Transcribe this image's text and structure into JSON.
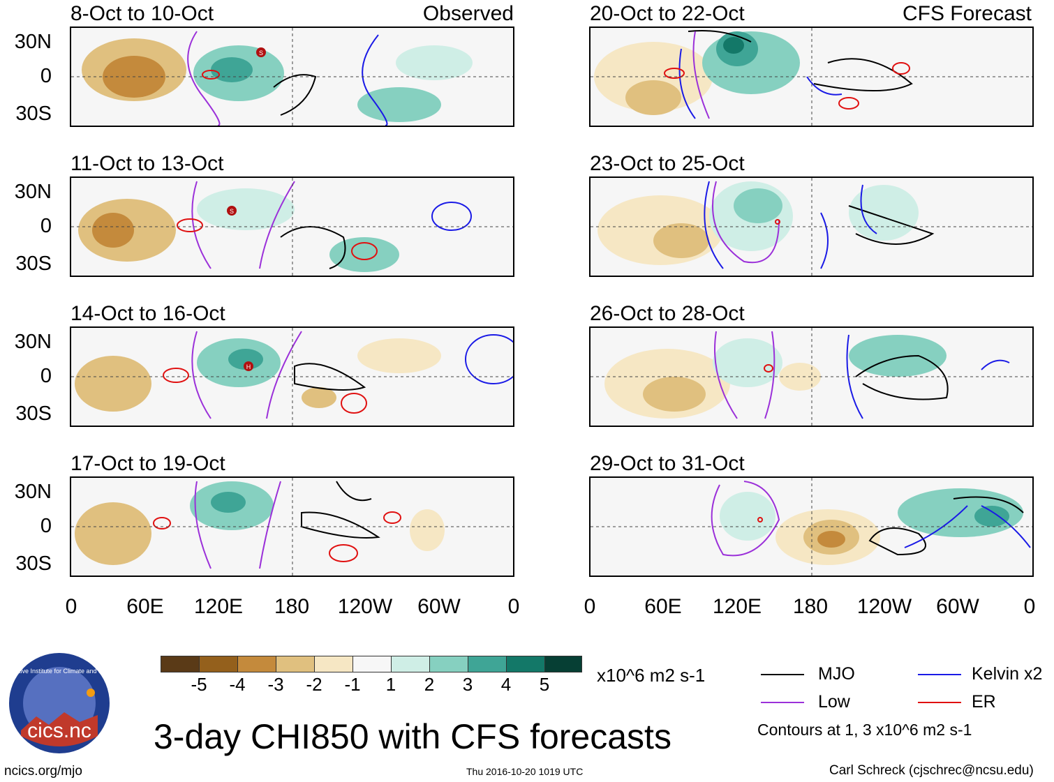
{
  "labels": {
    "observed": "Observed",
    "forecast": "CFS Forecast"
  },
  "left_panels": [
    {
      "date": "8-Oct to 10-Oct"
    },
    {
      "date": "11-Oct to 13-Oct"
    },
    {
      "date": "14-Oct to 16-Oct"
    },
    {
      "date": "17-Oct to 19-Oct"
    }
  ],
  "right_panels": [
    {
      "date": "20-Oct to 22-Oct"
    },
    {
      "date": "23-Oct to 25-Oct"
    },
    {
      "date": "26-Oct to 28-Oct"
    },
    {
      "date": "29-Oct to 31-Oct"
    }
  ],
  "lat_labels": [
    "30N",
    "0",
    "30S"
  ],
  "lon_labels": [
    "0",
    "60E",
    "120E",
    "180",
    "120W",
    "60W",
    "0"
  ],
  "storm_markers": [
    "S",
    "S",
    "H"
  ],
  "colorbar": {
    "colors": [
      "#5a3a17",
      "#94601c",
      "#c48a3c",
      "#e0c07f",
      "#f6e7c4",
      "#f7f7f7",
      "#cfeee6",
      "#86d0c0",
      "#3fa596",
      "#137868",
      "#063f34"
    ],
    "ticks": [
      "-5",
      "-4",
      "-3",
      "-2",
      "-1",
      "1",
      "2",
      "3",
      "4",
      "5"
    ],
    "units": "x10^6 m2 s-1"
  },
  "legend": {
    "mjo": {
      "label": "MJO",
      "color": "#000000"
    },
    "kelvin": {
      "label": "Kelvin x2",
      "color": "#1a1ae6"
    },
    "low": {
      "label": "Low",
      "color": "#9b30d9"
    },
    "er": {
      "label": "ER",
      "color": "#e01010"
    },
    "note": "Contours at 1, 3 x10^6 m2 s-1"
  },
  "logo": {
    "name": "cics.nc",
    "ring_text": "Cooperative Institute for Climate and Satellites"
  },
  "title": "3-day CHI850 with CFS forecasts",
  "footer": {
    "website": "ncics.org/mjo",
    "timestamp": "Thu 2016-10-20 1019 UTC",
    "author": "Carl Schreck (cjschrec@ncsu.edu)"
  }
}
